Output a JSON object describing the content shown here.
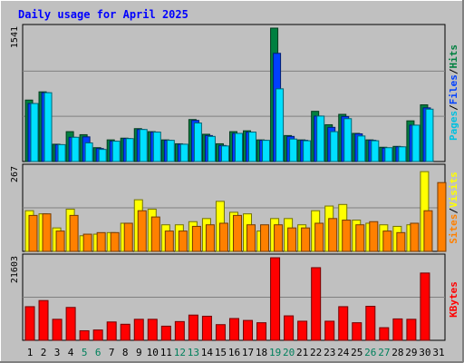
{
  "title": "Daily usage for April 2025",
  "chart_data": [
    {
      "type": "bar",
      "panel": "hits-files-pages",
      "categories": [
        "1",
        "2",
        "3",
        "4",
        "5",
        "6",
        "7",
        "8",
        "9",
        "10",
        "11",
        "12",
        "13",
        "14",
        "15",
        "16",
        "17",
        "18",
        "19",
        "20",
        "21",
        "22",
        "23",
        "24",
        "25",
        "26",
        "27",
        "28",
        "29",
        "30",
        "31"
      ],
      "ylim": [
        0,
        1541
      ],
      "y_max_label": "1541",
      "series": [
        {
          "name": "Hits",
          "color": "#008040",
          "values": [
            710,
            805,
            200,
            345,
            310,
            160,
            250,
            270,
            380,
            345,
            250,
            205,
            485,
            315,
            205,
            345,
            355,
            250,
            1541,
            300,
            250,
            580,
            425,
            545,
            325,
            250,
            165,
            175,
            470,
            655,
            0
          ]
        },
        {
          "name": "Files",
          "color": "#0040FF",
          "values": [
            670,
            795,
            195,
            280,
            285,
            150,
            235,
            265,
            370,
            340,
            245,
            200,
            475,
            300,
            185,
            325,
            340,
            245,
            1250,
            290,
            245,
            525,
            395,
            520,
            320,
            245,
            155,
            170,
            420,
            620,
            0
          ]
        },
        {
          "name": "Pages",
          "color": "#00E0FF",
          "values": [
            670,
            795,
            195,
            280,
            215,
            140,
            235,
            265,
            370,
            340,
            245,
            200,
            445,
            290,
            180,
            325,
            340,
            245,
            840,
            260,
            240,
            525,
            345,
            495,
            295,
            240,
            160,
            170,
            420,
            605,
            0
          ]
        }
      ]
    },
    {
      "type": "bar",
      "panel": "visits-sites",
      "categories": [
        "1",
        "2",
        "3",
        "4",
        "5",
        "6",
        "7",
        "8",
        "9",
        "10",
        "11",
        "12",
        "13",
        "14",
        "15",
        "16",
        "17",
        "18",
        "19",
        "20",
        "21",
        "22",
        "23",
        "24",
        "25",
        "26",
        "27",
        "28",
        "29",
        "30",
        "31"
      ],
      "ylim": [
        0,
        267
      ],
      "y_max_label": "267",
      "series": [
        {
          "name": "Visits",
          "color": "#FFFF00",
          "values": [
            130,
            120,
            75,
            135,
            50,
            55,
            60,
            90,
            165,
            135,
            85,
            85,
            95,
            105,
            160,
            125,
            120,
            65,
            105,
            105,
            85,
            130,
            145,
            150,
            100,
            90,
            85,
            80,
            85,
            255,
            0
          ]
        },
        {
          "name": "Sites",
          "color": "#FF8000",
          "values": [
            115,
            120,
            65,
            115,
            55,
            60,
            60,
            90,
            130,
            110,
            65,
            65,
            80,
            85,
            90,
            115,
            85,
            85,
            85,
            75,
            75,
            90,
            105,
            100,
            85,
            95,
            65,
            60,
            90,
            130,
            220
          ]
        }
      ]
    },
    {
      "type": "bar",
      "panel": "kbytes",
      "categories": [
        "1",
        "2",
        "3",
        "4",
        "5",
        "6",
        "7",
        "8",
        "9",
        "10",
        "11",
        "12",
        "13",
        "14",
        "15",
        "16",
        "17",
        "18",
        "19",
        "20",
        "21",
        "22",
        "23",
        "24",
        "25",
        "26",
        "27",
        "28",
        "29",
        "30",
        "31"
      ],
      "ylim": [
        0,
        21603
      ],
      "y_max_label": "21603",
      "series": [
        {
          "name": "KBytes",
          "color": "#FF0000",
          "values": [
            8800,
            10400,
            5500,
            8600,
            2500,
            2700,
            4800,
            4200,
            5500,
            5500,
            3700,
            4900,
            6600,
            6300,
            4100,
            5700,
            5200,
            4600,
            21600,
            6400,
            5000,
            19000,
            5000,
            8800,
            4600,
            8900,
            3300,
            5600,
            5500,
            17600,
            0
          ]
        }
      ]
    }
  ],
  "legend": {
    "top": [
      "Pages",
      "/",
      "Files",
      "/",
      "Hits"
    ],
    "middle": [
      "Sites",
      "/",
      "Visits"
    ],
    "bottom": [
      "KBytes"
    ]
  },
  "x_label_colors": {
    "weekday": "#000000",
    "weekend": "#00805c"
  },
  "weekend_days": [
    5,
    6,
    12,
    13,
    19,
    20,
    26,
    27
  ],
  "colors": {
    "background": "#C0C0C0",
    "frame": "#808080",
    "title": "#0000FF"
  }
}
